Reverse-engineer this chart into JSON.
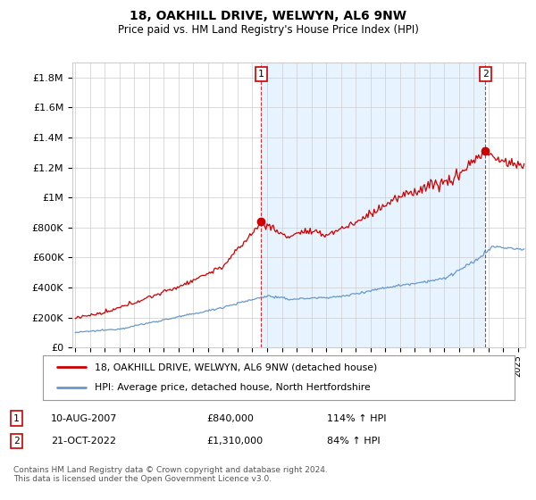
{
  "title": "18, OAKHILL DRIVE, WELWYN, AL6 9NW",
  "subtitle": "Price paid vs. HM Land Registry's House Price Index (HPI)",
  "ylabel_ticks": [
    "£0",
    "£200K",
    "£400K",
    "£600K",
    "£800K",
    "£1M",
    "£1.2M",
    "£1.4M",
    "£1.6M",
    "£1.8M"
  ],
  "ytick_values": [
    0,
    200000,
    400000,
    600000,
    800000,
    1000000,
    1200000,
    1400000,
    1600000,
    1800000
  ],
  "ylim": [
    0,
    1900000
  ],
  "xlim_start": 1994.8,
  "xlim_end": 2025.5,
  "red_line_label": "18, OAKHILL DRIVE, WELWYN, AL6 9NW (detached house)",
  "blue_line_label": "HPI: Average price, detached house, North Hertfordshire",
  "sale1_date": "10-AUG-2007",
  "sale1_price": "£840,000",
  "sale1_hpi": "114% ↑ HPI",
  "sale1_x": 2007.6,
  "sale1_y": 840000,
  "sale2_date": "21-OCT-2022",
  "sale2_price": "£1,310,000",
  "sale2_hpi": "84% ↑ HPI",
  "sale2_x": 2022.8,
  "sale2_y": 1310000,
  "red_color": "#cc0000",
  "blue_color": "#6699cc",
  "shade_color": "#ddeeff",
  "grid_color": "#cccccc",
  "background_color": "#ffffff",
  "footer": "Contains HM Land Registry data © Crown copyright and database right 2024.\nThis data is licensed under the Open Government Licence v3.0."
}
